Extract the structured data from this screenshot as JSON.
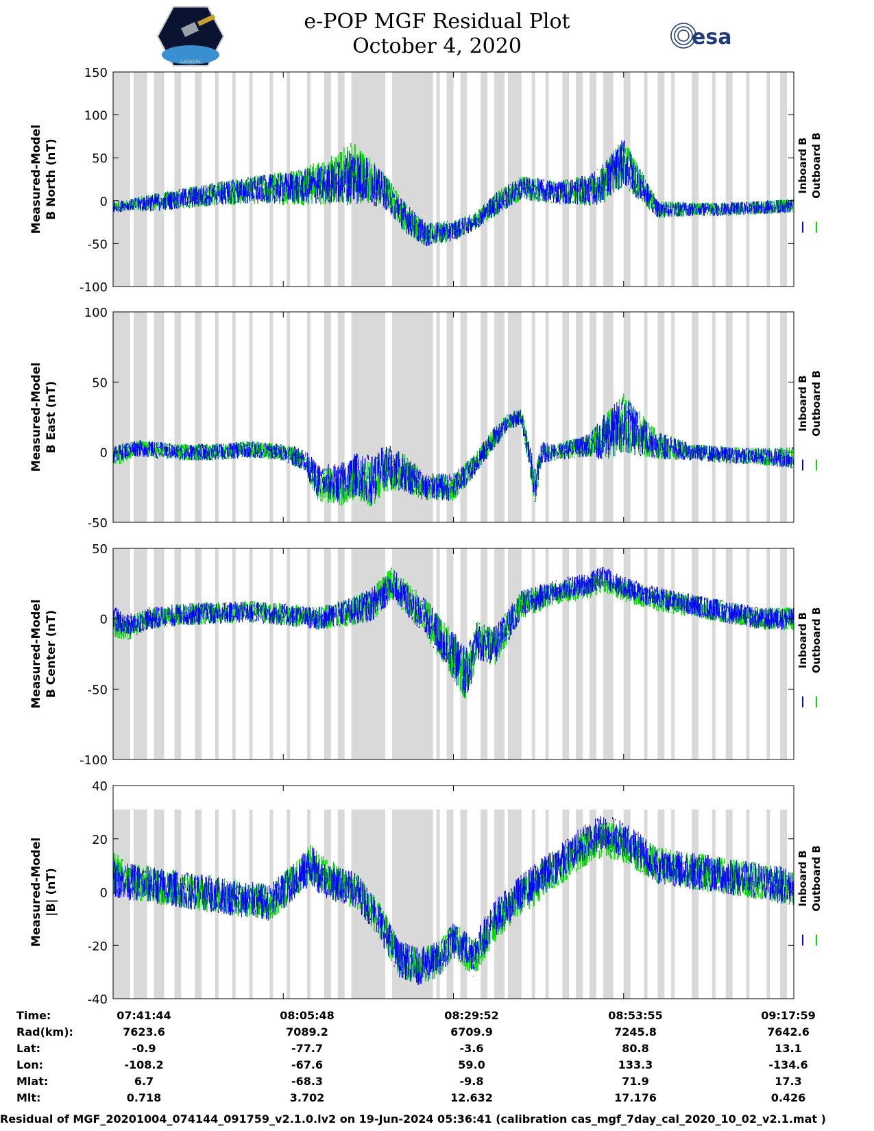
{
  "page": {
    "title_line1": "e-POP MGF Residual Plot",
    "title_line2": "October 4, 2020",
    "logos": [
      "cassiope-logo",
      "esa-logo"
    ],
    "esa_text": "esa",
    "cassiope_text": "CASSIOPE"
  },
  "colors": {
    "inboard": "#0000ff",
    "outboard": "#00dd00",
    "gap_shading": "#d9d9d9"
  },
  "chart_data": [
    {
      "type": "line",
      "ylabel": [
        "Measured-Model",
        "B North (nT)"
      ],
      "ylim": [
        -100,
        150
      ],
      "yticks": [
        150,
        100,
        50,
        0,
        -50,
        -100
      ],
      "legend": [
        "Inboard B",
        "Outboard B"
      ],
      "series": [
        {
          "name": "Inboard B",
          "color": "#0000ff",
          "x": [
            0,
            0.02,
            0.05,
            0.1,
            0.15,
            0.2,
            0.25,
            0.3,
            0.33,
            0.35,
            0.37,
            0.4,
            0.43,
            0.46,
            0.5,
            0.53,
            0.56,
            0.6,
            0.65,
            0.7,
            0.72,
            0.75,
            0.8,
            0.85,
            0.9,
            0.95,
            1.0
          ],
          "values": [
            -8,
            -5,
            -3,
            2,
            8,
            12,
            15,
            18,
            22,
            30,
            25,
            10,
            -20,
            -40,
            -35,
            -25,
            -5,
            15,
            10,
            12,
            20,
            45,
            -10,
            -10,
            -10,
            -8,
            -6
          ],
          "band": [
            8,
            6,
            10,
            12,
            14,
            16,
            18,
            22,
            26,
            36,
            28,
            20,
            18,
            14,
            12,
            10,
            14,
            14,
            14,
            18,
            24,
            28,
            10,
            8,
            8,
            8,
            8
          ]
        },
        {
          "name": "Outboard B",
          "color": "#00dd00",
          "x": [
            0,
            0.02,
            0.05,
            0.1,
            0.15,
            0.2,
            0.25,
            0.3,
            0.33,
            0.35,
            0.37,
            0.4,
            0.43,
            0.46,
            0.5,
            0.53,
            0.56,
            0.6,
            0.65,
            0.7,
            0.72,
            0.75,
            0.8,
            0.85,
            0.9,
            0.95,
            1.0
          ],
          "values": [
            -8,
            -5,
            -3,
            2,
            8,
            12,
            15,
            20,
            25,
            35,
            28,
            12,
            -20,
            -40,
            -35,
            -25,
            -5,
            15,
            10,
            12,
            20,
            45,
            -10,
            -10,
            -10,
            -8,
            -6
          ],
          "band": [
            8,
            6,
            10,
            12,
            14,
            16,
            20,
            26,
            30,
            40,
            30,
            20,
            18,
            14,
            12,
            10,
            14,
            14,
            14,
            18,
            24,
            28,
            10,
            8,
            8,
            8,
            8
          ]
        }
      ]
    },
    {
      "type": "line",
      "ylabel": [
        "Measured-Model",
        "B East (nT)"
      ],
      "ylim": [
        -50,
        100
      ],
      "yticks": [
        100,
        50,
        0,
        -50
      ],
      "legend": [
        "Inboard B",
        "Outboard B"
      ],
      "series": [
        {
          "name": "Inboard B",
          "color": "#0000ff",
          "x": [
            0,
            0.03,
            0.1,
            0.15,
            0.2,
            0.25,
            0.28,
            0.3,
            0.33,
            0.36,
            0.38,
            0.4,
            0.43,
            0.46,
            0.5,
            0.53,
            0.56,
            0.58,
            0.6,
            0.62,
            0.63,
            0.65,
            0.7,
            0.72,
            0.75,
            0.8,
            0.85,
            0.9,
            0.95,
            1.0
          ],
          "values": [
            -2,
            3,
            0,
            0,
            2,
            0,
            -5,
            -20,
            -22,
            -15,
            -20,
            -10,
            -15,
            -25,
            -25,
            -10,
            10,
            22,
            25,
            -25,
            0,
            0,
            5,
            10,
            20,
            5,
            0,
            -2,
            -3,
            -4
          ],
          "band": [
            6,
            6,
            6,
            6,
            6,
            6,
            8,
            12,
            14,
            16,
            18,
            16,
            14,
            10,
            10,
            8,
            8,
            6,
            6,
            14,
            8,
            6,
            8,
            16,
            22,
            10,
            6,
            6,
            6,
            8
          ]
        },
        {
          "name": "Outboard B",
          "color": "#00dd00",
          "x": [
            0,
            0.03,
            0.1,
            0.15,
            0.2,
            0.25,
            0.28,
            0.3,
            0.33,
            0.36,
            0.38,
            0.4,
            0.43,
            0.46,
            0.5,
            0.53,
            0.56,
            0.58,
            0.6,
            0.62,
            0.63,
            0.65,
            0.7,
            0.72,
            0.75,
            0.8,
            0.85,
            0.9,
            0.95,
            1.0
          ],
          "values": [
            -4,
            3,
            0,
            0,
            2,
            0,
            -6,
            -23,
            -25,
            -18,
            -22,
            -12,
            -15,
            -25,
            -25,
            -10,
            10,
            22,
            25,
            -25,
            0,
            0,
            5,
            10,
            20,
            5,
            0,
            -2,
            -3,
            -4
          ],
          "band": [
            8,
            6,
            6,
            6,
            6,
            6,
            8,
            12,
            14,
            16,
            18,
            16,
            14,
            10,
            10,
            8,
            8,
            6,
            6,
            14,
            8,
            6,
            8,
            16,
            22,
            10,
            6,
            6,
            6,
            8
          ]
        }
      ]
    },
    {
      "type": "line",
      "ylabel": [
        "Measured-Model",
        "B Center (nT)"
      ],
      "ylim": [
        -100,
        50
      ],
      "yticks": [
        50,
        0,
        -50,
        -100
      ],
      "legend": [
        "Inboard B",
        "Outboard B"
      ],
      "series": [
        {
          "name": "Inboard B",
          "color": "#0000ff",
          "x": [
            0,
            0.02,
            0.05,
            0.1,
            0.15,
            0.2,
            0.25,
            0.3,
            0.35,
            0.38,
            0.41,
            0.43,
            0.46,
            0.49,
            0.52,
            0.535,
            0.56,
            0.6,
            0.65,
            0.7,
            0.72,
            0.75,
            0.8,
            0.85,
            0.9,
            0.95,
            1.0
          ],
          "values": [
            0,
            -5,
            0,
            3,
            4,
            5,
            3,
            0,
            5,
            10,
            25,
            15,
            0,
            -20,
            -40,
            -15,
            -20,
            10,
            20,
            25,
            30,
            22,
            15,
            10,
            5,
            0,
            0
          ],
          "band": [
            10,
            8,
            8,
            8,
            8,
            8,
            8,
            8,
            10,
            12,
            12,
            12,
            14,
            16,
            20,
            14,
            14,
            10,
            8,
            8,
            8,
            8,
            8,
            8,
            8,
            8,
            8
          ]
        },
        {
          "name": "Outboard B",
          "color": "#00dd00",
          "x": [
            0,
            0.02,
            0.05,
            0.1,
            0.15,
            0.2,
            0.25,
            0.3,
            0.35,
            0.38,
            0.41,
            0.43,
            0.46,
            0.49,
            0.52,
            0.535,
            0.56,
            0.6,
            0.65,
            0.7,
            0.72,
            0.75,
            0.8,
            0.85,
            0.9,
            0.95,
            1.0
          ],
          "values": [
            -3,
            -8,
            0,
            3,
            4,
            5,
            3,
            0,
            5,
            10,
            25,
            15,
            0,
            -20,
            -40,
            -15,
            -20,
            10,
            18,
            22,
            27,
            20,
            13,
            9,
            5,
            0,
            0
          ],
          "band": [
            10,
            8,
            8,
            8,
            8,
            8,
            8,
            8,
            10,
            12,
            12,
            12,
            14,
            16,
            20,
            14,
            14,
            10,
            8,
            8,
            8,
            8,
            8,
            8,
            8,
            8,
            8
          ]
        }
      ]
    },
    {
      "type": "line",
      "ylabel": [
        "Measured-Model",
        "|B| (nT)"
      ],
      "ylim": [
        -40,
        40
      ],
      "yticks": [
        40,
        20,
        0,
        -20,
        -40
      ],
      "legend": [
        "Inboard B",
        "Outboard B"
      ],
      "series": [
        {
          "name": "Inboard B",
          "color": "#0000ff",
          "x": [
            0,
            0.02,
            0.05,
            0.1,
            0.15,
            0.2,
            0.23,
            0.27,
            0.29,
            0.31,
            0.33,
            0.36,
            0.39,
            0.42,
            0.45,
            0.48,
            0.5,
            0.53,
            0.56,
            0.6,
            0.65,
            0.7,
            0.72,
            0.75,
            0.8,
            0.85,
            0.9,
            0.95,
            1.0
          ],
          "values": [
            5,
            4,
            3,
            1,
            -1,
            -3,
            -4,
            5,
            10,
            5,
            3,
            0,
            -10,
            -25,
            -28,
            -25,
            -18,
            -23,
            -10,
            0,
            10,
            20,
            23,
            20,
            10,
            8,
            6,
            4,
            2
          ],
          "band": [
            7,
            7,
            7,
            7,
            7,
            7,
            7,
            7,
            8,
            7,
            7,
            7,
            7,
            7,
            7,
            7,
            7,
            7,
            7,
            7,
            7,
            7,
            7,
            7,
            7,
            7,
            7,
            7,
            7
          ]
        },
        {
          "name": "Outboard B",
          "color": "#00dd00",
          "x": [
            0,
            0.02,
            0.05,
            0.1,
            0.15,
            0.2,
            0.23,
            0.27,
            0.29,
            0.31,
            0.33,
            0.36,
            0.39,
            0.42,
            0.45,
            0.48,
            0.5,
            0.53,
            0.56,
            0.6,
            0.65,
            0.7,
            0.72,
            0.75,
            0.8,
            0.85,
            0.9,
            0.95,
            1.0
          ],
          "values": [
            8,
            4,
            3,
            1,
            -1,
            -3,
            -4,
            5,
            10,
            7,
            3,
            0,
            -10,
            -25,
            -28,
            -25,
            -18,
            -25,
            -12,
            -2,
            8,
            18,
            20,
            18,
            10,
            8,
            6,
            4,
            2
          ],
          "band": [
            9,
            7,
            7,
            7,
            7,
            7,
            7,
            7,
            8,
            7,
            7,
            7,
            7,
            7,
            7,
            7,
            7,
            7,
            7,
            7,
            7,
            7,
            7,
            7,
            7,
            7,
            7,
            7,
            7
          ]
        }
      ]
    }
  ],
  "gap_regions": [
    [
      0.0,
      0.025
    ],
    [
      0.03,
      0.05
    ],
    [
      0.06,
      0.075
    ],
    [
      0.09,
      0.1
    ],
    [
      0.12,
      0.13
    ],
    [
      0.15,
      0.155
    ],
    [
      0.175,
      0.18
    ],
    [
      0.2,
      0.205
    ],
    [
      0.23,
      0.235
    ],
    [
      0.255,
      0.26
    ],
    [
      0.285,
      0.29
    ],
    [
      0.31,
      0.32
    ],
    [
      0.33,
      0.34
    ],
    [
      0.35,
      0.4
    ],
    [
      0.41,
      0.47
    ],
    [
      0.475,
      0.48
    ],
    [
      0.49,
      0.5
    ],
    [
      0.51,
      0.52
    ],
    [
      0.54,
      0.55
    ],
    [
      0.56,
      0.575
    ],
    [
      0.58,
      0.6
    ],
    [
      0.615,
      0.62
    ],
    [
      0.635,
      0.64
    ],
    [
      0.66,
      0.67
    ],
    [
      0.68,
      0.69
    ],
    [
      0.7,
      0.71
    ],
    [
      0.72,
      0.735
    ],
    [
      0.75,
      0.76
    ],
    [
      0.78,
      0.785
    ],
    [
      0.8,
      0.81
    ],
    [
      0.82,
      0.825
    ],
    [
      0.85,
      0.86
    ],
    [
      0.88,
      0.885
    ],
    [
      0.9,
      0.91
    ],
    [
      0.93,
      0.935
    ],
    [
      0.96,
      0.965
    ],
    [
      0.98,
      0.99
    ]
  ],
  "xaxis_rows": {
    "labels": [
      "Time:",
      "Rad(km):",
      "Lat:",
      "Lon:",
      "Mlat:",
      "Mlt:"
    ],
    "columns": [
      [
        "07:41:44",
        "7623.6",
        "-0.9",
        "-108.2",
        "6.7",
        "0.718"
      ],
      [
        "08:05:48",
        "7089.2",
        "-77.7",
        "-67.6",
        "-68.3",
        "3.702"
      ],
      [
        "08:29:52",
        "6709.9",
        "-3.6",
        "59.0",
        "-9.8",
        "12.632"
      ],
      [
        "08:53:55",
        "7245.8",
        "80.8",
        "133.3",
        "71.9",
        "17.176"
      ],
      [
        "09:17:59",
        "7642.6",
        "13.1",
        "-134.6",
        "17.3",
        "0.426"
      ]
    ]
  },
  "footer": {
    "caption": "Residual of MGF_20201004_074144_091759_v2.1.0.lv2 on 19-Jun-2024 05:36:41 (calibration cas_mgf_7day_cal_2020_10_02_v2.1.mat )"
  }
}
